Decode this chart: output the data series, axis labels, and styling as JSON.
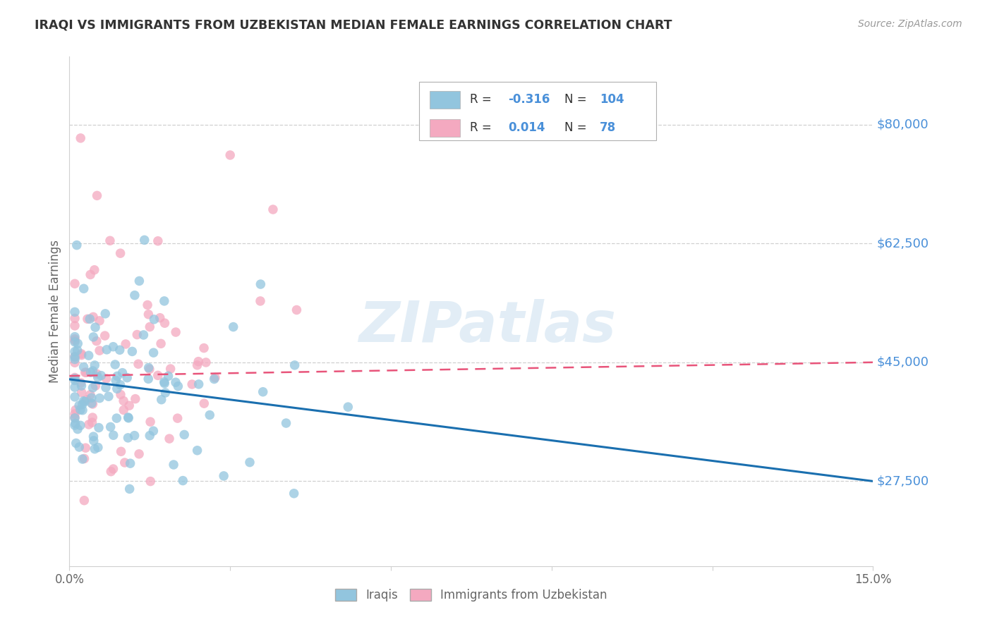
{
  "title": "IRAQI VS IMMIGRANTS FROM UZBEKISTAN MEDIAN FEMALE EARNINGS CORRELATION CHART",
  "source": "Source: ZipAtlas.com",
  "ylabel": "Median Female Earnings",
  "xlim": [
    0.0,
    0.15
  ],
  "ylim": [
    15000,
    90000
  ],
  "yticks": [
    27500,
    45000,
    62500,
    80000
  ],
  "ytick_labels": [
    "$27,500",
    "$45,000",
    "$62,500",
    "$80,000"
  ],
  "blue_color": "#92c5de",
  "pink_color": "#f4a9c0",
  "blue_line_color": "#1a6faf",
  "pink_line_color": "#e8547a",
  "right_label_color": "#4a90d9",
  "legend_blue_R": "-0.316",
  "legend_blue_N": "104",
  "legend_pink_R": "0.014",
  "legend_pink_N": "78",
  "watermark": "ZIPatlas",
  "title_color": "#333333",
  "source_color": "#999999",
  "label_color": "#666666",
  "legend_text_color": "#333333",
  "legend_value_color": "#4a90d9",
  "grid_color": "#d0d0d0"
}
